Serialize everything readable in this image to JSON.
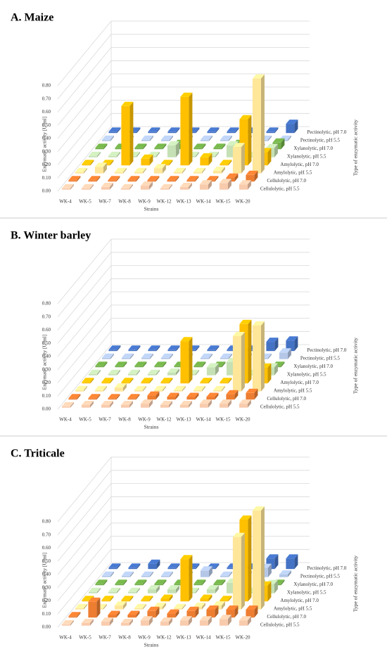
{
  "chart_data": [
    {
      "type": "bar3d",
      "title": "A. Maize",
      "y_label": "Enzymatic activity [U/ml]",
      "x_label": "Strains",
      "z_label": "Type of enzymatic activity",
      "categories": [
        "WK-4",
        "WK-5",
        "WK-7",
        "WK-8",
        "WK-9",
        "WK-12",
        "WK-13",
        "WK-14",
        "WK-15",
        "WK-20"
      ],
      "ylim": [
        0,
        0.8
      ],
      "yticks": [
        {
          "value": 0,
          "label": "0.00"
        },
        {
          "value": 0.1,
          "label": "0.10"
        },
        {
          "value": 0.2,
          "label": "0.20"
        },
        {
          "value": 0.3,
          "label": "0.30"
        },
        {
          "value": 0.4,
          "label": "0.40"
        },
        {
          "value": 0.5,
          "label": "0.50"
        },
        {
          "value": 0.6,
          "label": "0.60"
        },
        {
          "value": 0.7,
          "label": "0.70"
        },
        {
          "value": 0.8,
          "label": "0.80"
        }
      ],
      "grid": true,
      "series": [
        {
          "name": "Cellulolytic, pH 5.5",
          "color": "#f8cbad",
          "values": [
            0.01,
            0.01,
            0.02,
            0.01,
            0.03,
            0.01,
            0.02,
            0.04,
            0.05,
            0.04
          ]
        },
        {
          "name": "Cellulolytic, pH 7.0",
          "color": "#ed7d31",
          "values": [
            0.01,
            0.01,
            0.01,
            0.01,
            0.01,
            0.01,
            0.01,
            0.01,
            0.03,
            0.05
          ]
        },
        {
          "name": "Amylolytic, pH 5.5",
          "color": "#ffe699",
          "values": [
            0.01,
            0.05,
            0.01,
            0.01,
            0.04,
            0.01,
            0.01,
            0.02,
            0.2,
            0.72
          ]
        },
        {
          "name": "Amylolytic, pH 7.0",
          "color": "#ffc000",
          "values": [
            0.01,
            0.01,
            0.45,
            0.05,
            0.01,
            0.52,
            0.06,
            0.01,
            0.35,
            0.1
          ]
        },
        {
          "name": "Xylanolytic, pH 5.5",
          "color": "#c5e0b4",
          "values": [
            0.01,
            0.01,
            0.01,
            0.01,
            0.09,
            0.01,
            0.01,
            0.09,
            0.01,
            0.07
          ]
        },
        {
          "name": "Xylanolytic, pH 7.0",
          "color": "#70ad47",
          "values": [
            0.01,
            0.01,
            0.01,
            0.01,
            0.04,
            0.01,
            0.01,
            0.04,
            0.01,
            0.05
          ]
        },
        {
          "name": "Pectinolytic, pH 5.5",
          "color": "#b4c7e7",
          "values": [
            0.01,
            0.01,
            0.01,
            0.01,
            0.01,
            0.01,
            0.01,
            0.01,
            0.01,
            0.01
          ]
        },
        {
          "name": "Pectinolytic, pH 7.0",
          "color": "#4472c4",
          "values": [
            0.01,
            0.01,
            0.01,
            0.01,
            0.01,
            0.01,
            0.01,
            0.01,
            0.01,
            0.07
          ]
        }
      ]
    },
    {
      "type": "bar3d",
      "title": "B. Winter barley",
      "y_label": "Enzymatic activity [U/ml]",
      "x_label": "Strains",
      "z_label": "Type of enzymatic activity",
      "categories": [
        "WK-4",
        "WK-5",
        "WK-7",
        "WK-8",
        "WK-9",
        "WK-12",
        "WK-13",
        "WK-14",
        "WK-15",
        "WK-20"
      ],
      "ylim": [
        0,
        0.8
      ],
      "yticks": [
        {
          "value": 0,
          "label": "0.00"
        },
        {
          "value": 0.1,
          "label": "0.10"
        },
        {
          "value": 0.2,
          "label": "0.20"
        },
        {
          "value": 0.3,
          "label": "0.30"
        },
        {
          "value": 0.4,
          "label": "0.40"
        },
        {
          "value": 0.5,
          "label": "0.50"
        },
        {
          "value": 0.6,
          "label": "0.60"
        },
        {
          "value": 0.7,
          "label": "0.70"
        },
        {
          "value": 0.8,
          "label": "0.80"
        }
      ],
      "grid": true,
      "series": [
        {
          "name": "Cellulolytic, pH 5.5",
          "color": "#f8cbad",
          "values": [
            0.01,
            0.02,
            0.02,
            0.02,
            0.03,
            0.02,
            0.02,
            0.03,
            0.03,
            0.03
          ]
        },
        {
          "name": "Cellulolytic, pH 7.0",
          "color": "#ed7d31",
          "values": [
            0.01,
            0.01,
            0.01,
            0.01,
            0.03,
            0.02,
            0.02,
            0.02,
            0.04,
            0.05
          ]
        },
        {
          "name": "Amylolytic, pH 5.5",
          "color": "#ffe699",
          "values": [
            0.01,
            0.01,
            0.03,
            0.01,
            0.01,
            0.01,
            0.01,
            0.01,
            0.42,
            0.5
          ]
        },
        {
          "name": "Amylolytic, pH 7.0",
          "color": "#ffc000",
          "values": [
            0.01,
            0.01,
            0.01,
            0.01,
            0.01,
            0.32,
            0.01,
            0.01,
            0.45,
            0.12
          ]
        },
        {
          "name": "Xylanolytic, pH 5.5",
          "color": "#c5e0b4",
          "values": [
            0.01,
            0.01,
            0.01,
            0.01,
            0.02,
            0.01,
            0.06,
            0.1,
            0.01,
            0.06
          ]
        },
        {
          "name": "Xylanolytic, pH 7.0",
          "color": "#70ad47",
          "values": [
            0.01,
            0.01,
            0.01,
            0.01,
            0.01,
            0.01,
            0.01,
            0.01,
            0.01,
            0.01
          ]
        },
        {
          "name": "Pectinolytic, pH 5.5",
          "color": "#b4c7e7",
          "values": [
            0.01,
            0.01,
            0.01,
            0.01,
            0.01,
            0.01,
            0.01,
            0.01,
            0.01,
            0.05
          ]
        },
        {
          "name": "Pectinolytic, pH 7.0",
          "color": "#4472c4",
          "values": [
            0.01,
            0.01,
            0.01,
            0.01,
            0.01,
            0.01,
            0.01,
            0.01,
            0.07,
            0.08
          ]
        }
      ]
    },
    {
      "type": "bar3d",
      "title": "C. Triticale",
      "y_label": "Enzymatic activity [U/ml]",
      "x_label": "Strains",
      "z_label": "Type of enzymatic activity",
      "categories": [
        "WK-4",
        "WK-5",
        "WK-7",
        "WK-8",
        "WK-9",
        "WK-12",
        "WK-13",
        "WK-14",
        "WK-15",
        "WK-20"
      ],
      "ylim": [
        0,
        0.8
      ],
      "yticks": [
        {
          "value": 0,
          "label": "0.00"
        },
        {
          "value": 0.1,
          "label": "0.10"
        },
        {
          "value": 0.2,
          "label": "0.20"
        },
        {
          "value": 0.3,
          "label": "0.30"
        },
        {
          "value": 0.4,
          "label": "0.40"
        },
        {
          "value": 0.5,
          "label": "0.50"
        },
        {
          "value": 0.6,
          "label": "0.60"
        },
        {
          "value": 0.7,
          "label": "0.70"
        },
        {
          "value": 0.8,
          "label": "0.80"
        }
      ],
      "grid": true,
      "series": [
        {
          "name": "Cellulolytic, pH 5.5",
          "color": "#f8cbad",
          "values": [
            0.01,
            0.02,
            0.03,
            0.02,
            0.04,
            0.03,
            0.04,
            0.04,
            0.05,
            0.04
          ]
        },
        {
          "name": "Cellulolytic, pH 7.0",
          "color": "#ed7d31",
          "values": [
            0.01,
            0.12,
            0.02,
            0.02,
            0.05,
            0.03,
            0.05,
            0.06,
            0.06,
            0.06
          ]
        },
        {
          "name": "Amylolytic, pH 5.5",
          "color": "#ffe699",
          "values": [
            0.01,
            0.01,
            0.03,
            0.01,
            0.02,
            0.01,
            0.02,
            0.03,
            0.55,
            0.75
          ]
        },
        {
          "name": "Amylolytic, pH 7.0",
          "color": "#ffc000",
          "values": [
            0.01,
            0.01,
            0.01,
            0.01,
            0.02,
            0.32,
            0.02,
            0.01,
            0.62,
            0.12
          ]
        },
        {
          "name": "Xylanolytic, pH 5.5",
          "color": "#c5e0b4",
          "values": [
            0.01,
            0.01,
            0.01,
            0.03,
            0.03,
            0.01,
            0.03,
            0.08,
            0.01,
            0.07
          ]
        },
        {
          "name": "Xylanolytic, pH 7.0",
          "color": "#70ad47",
          "values": [
            0.01,
            0.01,
            0.01,
            0.01,
            0.01,
            0.01,
            0.01,
            0.01,
            0.01,
            0.01
          ]
        },
        {
          "name": "Pectinolytic, pH 5.5",
          "color": "#b4c7e7",
          "values": [
            0.01,
            0.01,
            0.01,
            0.01,
            0.01,
            0.05,
            0.01,
            0.01,
            0.07,
            0.02
          ]
        },
        {
          "name": "Pectinolytic, pH 7.0",
          "color": "#4472c4",
          "values": [
            0.01,
            0.01,
            0.04,
            0.01,
            0.01,
            0.01,
            0.01,
            0.01,
            0.08,
            0.08
          ]
        }
      ]
    }
  ]
}
